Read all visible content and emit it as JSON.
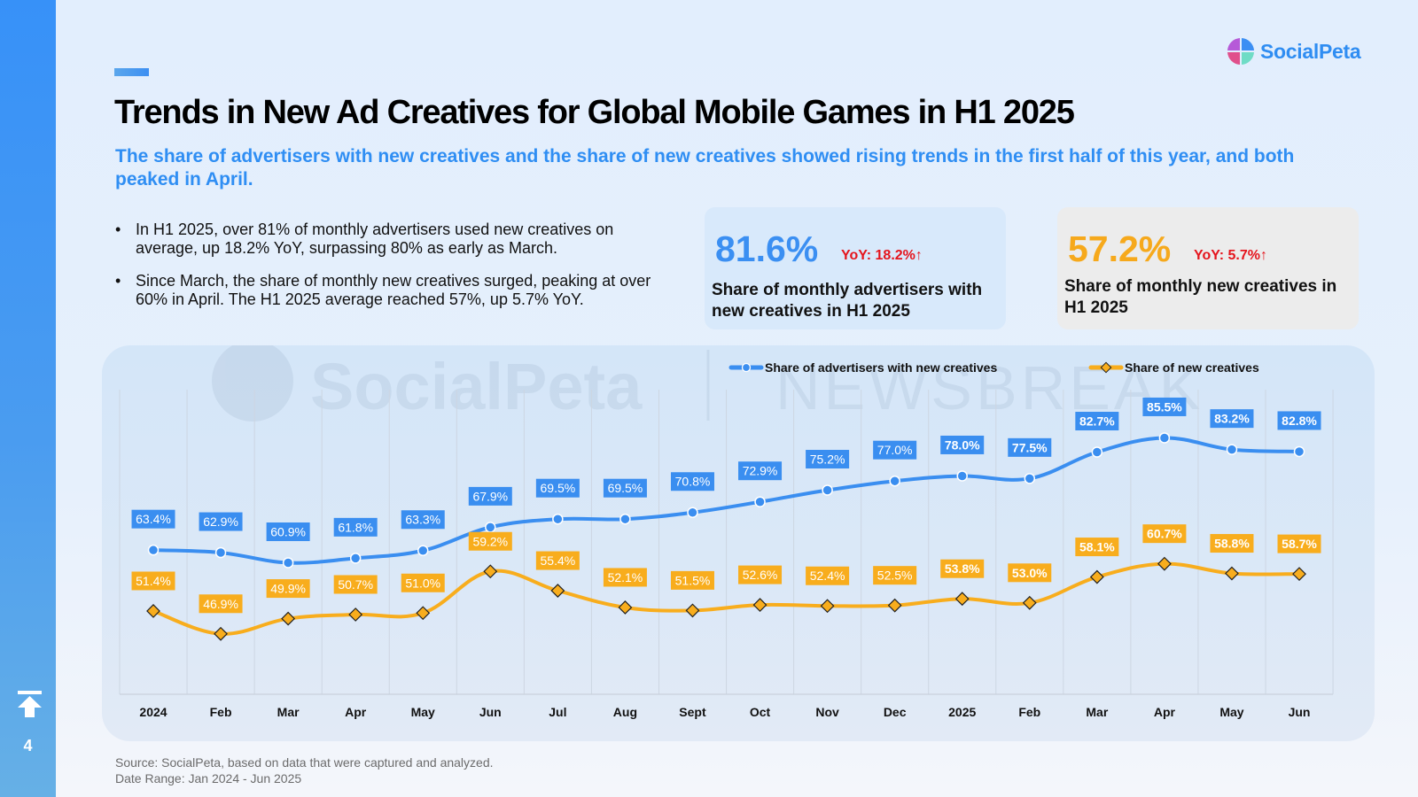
{
  "sidebar": {
    "page_number": "4",
    "back_to_top_icon": "arrow-up-to-line-icon"
  },
  "logo": {
    "text": "SocialPeta"
  },
  "header": {
    "title": "Trends in New Ad Creatives for Global Mobile Games in H1 2025",
    "subtitle": "The share of advertisers with new creatives and the share of new creatives showed rising trends in the first half of this year, and both peaked in April."
  },
  "bullets": [
    {
      "marker": "•",
      "text": "In H1 2025, over 81% of monthly advertisers used new creatives on average, up 18.2% YoY, surpassing 80% as early as March."
    },
    {
      "marker": "•",
      "text": "Since March, the share of monthly new creatives surged, peaking at over 60% in April. The H1 2025 average reached 57%, up 5.7% YoY."
    }
  ],
  "kpis": [
    {
      "value": "81.6%",
      "yoy": "YoY: 18.2%↑",
      "description": "Share of monthly advertisers with new creatives in H1 2025",
      "color": "#3b8ff2"
    },
    {
      "value": "57.2%",
      "yoy": "YoY: 5.7%↑",
      "description": "Share of monthly new creatives in H1 2025",
      "color": "#f6a91c"
    }
  ],
  "watermark": {
    "left": "SocialPeta",
    "right": "NEWSBREAK"
  },
  "chart_data": {
    "type": "line",
    "title": "",
    "xlabel": "",
    "ylabel": "",
    "x": [
      "2024",
      "Feb",
      "Mar",
      "Apr",
      "May",
      "Jun",
      "Jul",
      "Aug",
      "Sept",
      "Oct",
      "Nov",
      "Dec",
      "2025",
      "Feb",
      "Mar",
      "Apr",
      "May",
      "Jun"
    ],
    "ylim": [
      35,
      95
    ],
    "grid": "vertical",
    "legend_position": "top-right",
    "smooth": true,
    "series": [
      {
        "name": "Share of advertisers with new creatives",
        "color": "#3a8ef0",
        "marker": "circle",
        "values": [
          63.4,
          62.9,
          60.9,
          61.8,
          63.3,
          67.9,
          69.5,
          69.5,
          70.8,
          72.9,
          75.2,
          77.0,
          78.0,
          77.5,
          82.7,
          85.5,
          83.2,
          82.8
        ],
        "labels": [
          "63.4%",
          "62.9%",
          "60.9%",
          "61.8%",
          "63.3%",
          "67.9%",
          "69.5%",
          "69.5%",
          "70.8%",
          "72.9%",
          "75.2%",
          "77.0%",
          "78.0%",
          "77.5%",
          "82.7%",
          "85.5%",
          "83.2%",
          "82.8%"
        ]
      },
      {
        "name": "Share of new creatives",
        "color": "#f8ad1d",
        "marker": "diamond",
        "values": [
          51.4,
          46.9,
          49.9,
          50.7,
          51.0,
          59.2,
          55.4,
          52.1,
          51.5,
          52.6,
          52.4,
          52.5,
          53.8,
          53.0,
          58.1,
          60.7,
          58.8,
          58.7
        ],
        "labels": [
          "51.4%",
          "46.9%",
          "49.9%",
          "50.7%",
          "51.0%",
          "59.2%",
          "55.4%",
          "52.1%",
          "51.5%",
          "52.6%",
          "52.4%",
          "52.5%",
          "53.8%",
          "53.0%",
          "58.1%",
          "60.7%",
          "58.8%",
          "58.7%"
        ]
      }
    ]
  },
  "footer": {
    "source": "Source: SocialPeta, based on data that were captured and analyzed.",
    "date_range": "Date Range: Jan 2024 - Jun 2025"
  }
}
